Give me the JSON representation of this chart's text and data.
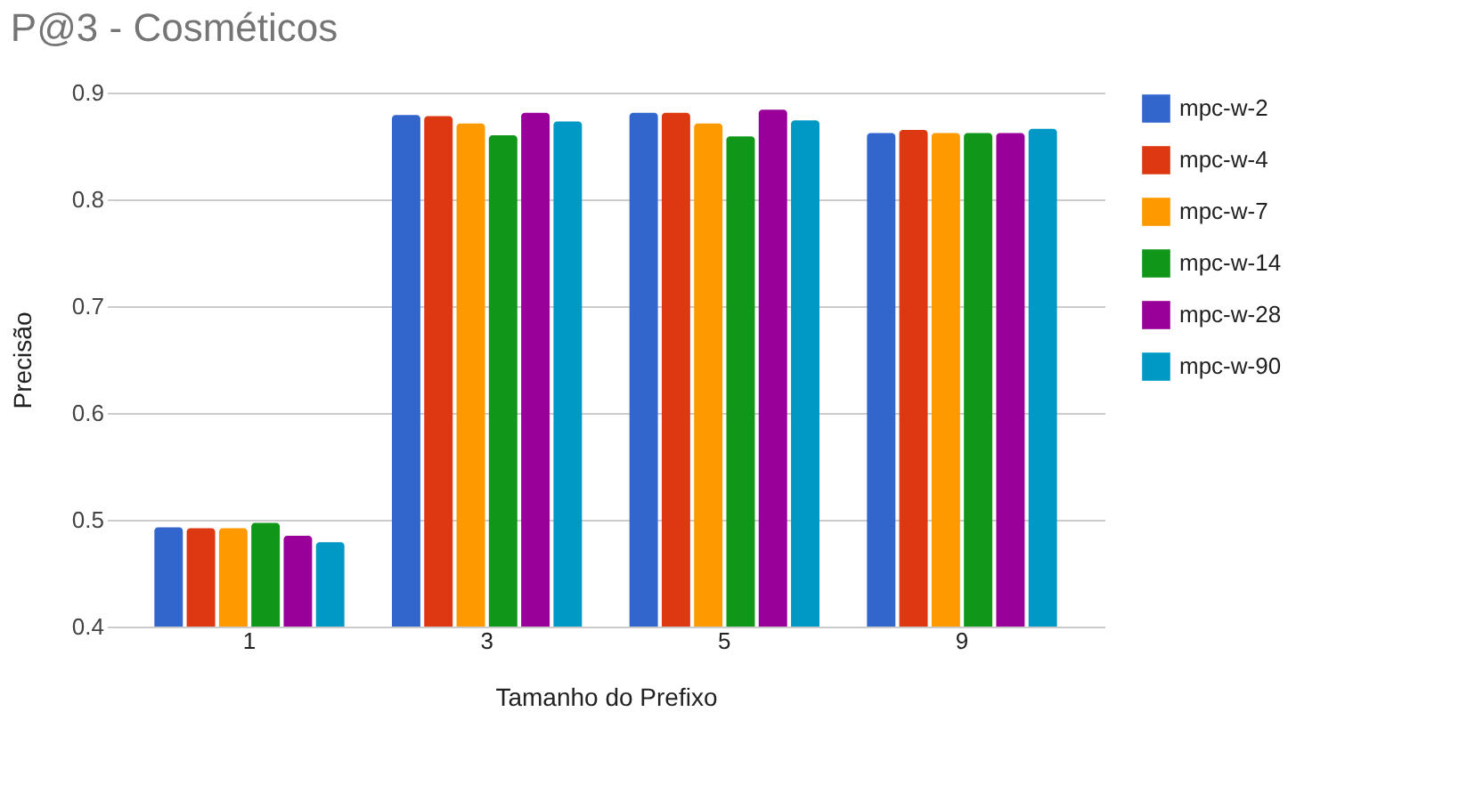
{
  "chart_data": {
    "type": "bar",
    "title": "P@3 - Cosméticos",
    "xlabel": "Tamanho do Prefixo",
    "ylabel": "Precisão",
    "categories": [
      "1",
      "3",
      "5",
      "9"
    ],
    "series": [
      {
        "name": "mpc-w-2",
        "color": "#3366cc",
        "values": [
          0.493,
          0.879,
          0.881,
          0.862
        ]
      },
      {
        "name": "mpc-w-4",
        "color": "#dc3912",
        "values": [
          0.492,
          0.878,
          0.881,
          0.865
        ]
      },
      {
        "name": "mpc-w-7",
        "color": "#ff9900",
        "values": [
          0.492,
          0.871,
          0.871,
          0.862
        ]
      },
      {
        "name": "mpc-w-14",
        "color": "#109618",
        "values": [
          0.497,
          0.86,
          0.859,
          0.862
        ]
      },
      {
        "name": "mpc-w-28",
        "color": "#990099",
        "values": [
          0.485,
          0.881,
          0.884,
          0.862
        ]
      },
      {
        "name": "mpc-w-90",
        "color": "#0099c6",
        "values": [
          0.479,
          0.873,
          0.874,
          0.866
        ]
      }
    ],
    "ylim": [
      0.4,
      0.9
    ],
    "yticks": [
      0.4,
      0.5,
      0.6,
      0.7,
      0.8,
      0.9
    ],
    "grid": "y",
    "legend": "right"
  }
}
